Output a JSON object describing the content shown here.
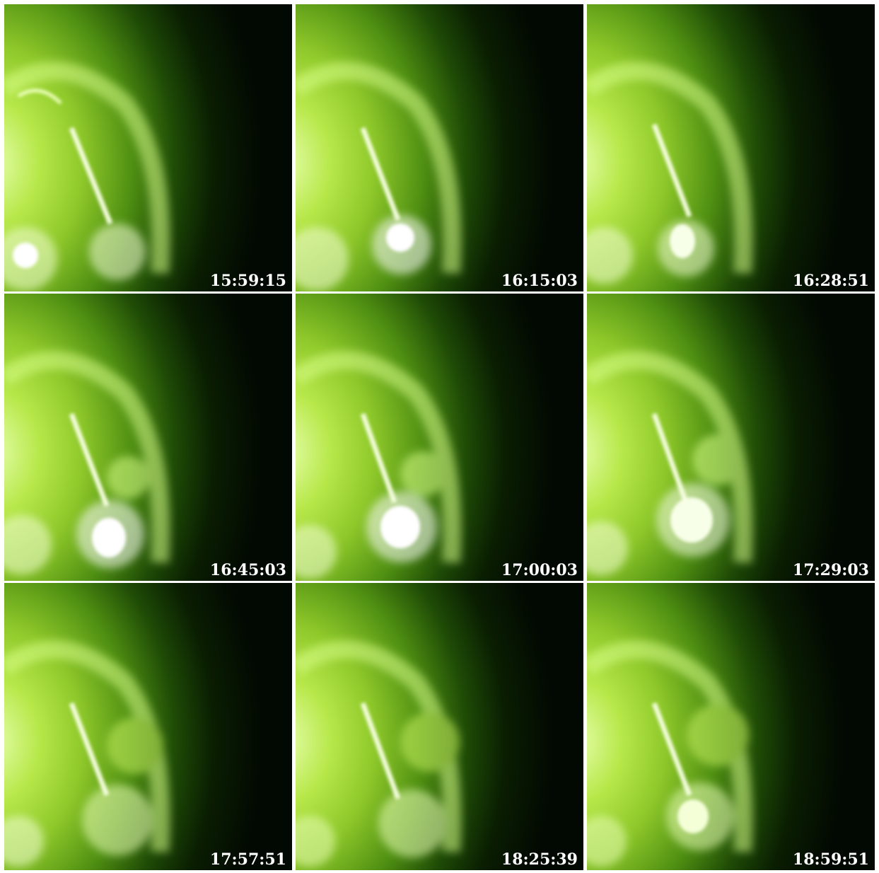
{
  "panels": [
    {
      "timestamp": "15:59:15"
    },
    {
      "timestamp": "16:15:03"
    },
    {
      "timestamp": "16:28:51"
    },
    {
      "timestamp": "16:45:03"
    },
    {
      "timestamp": "17:00:03"
    },
    {
      "timestamp": "17:29:03"
    },
    {
      "timestamp": "17:57:51"
    },
    {
      "timestamp": "18:25:39"
    },
    {
      "timestamp": "18:59:51"
    }
  ],
  "colors": {
    "bright": "#f4ffd8",
    "mid": "#9fd638",
    "dark": "#0a1e02",
    "label": "#ffffff",
    "separator": "#ffffff"
  }
}
